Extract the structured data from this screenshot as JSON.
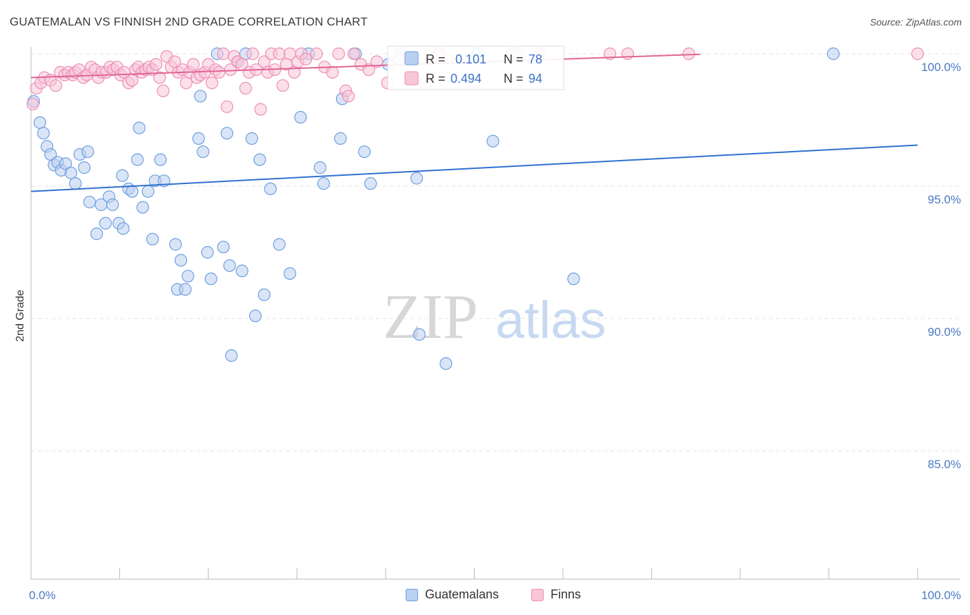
{
  "header": {
    "title": "GUATEMALAN VS FINNISH 2ND GRADE CORRELATION CHART",
    "source": "Source: ZipAtlas.com"
  },
  "watermark": {
    "zip": "ZIP",
    "atlas": "atlas"
  },
  "chart_data": {
    "type": "scatter",
    "title": "GUATEMALAN VS FINNISH 2ND GRADE CORRELATION CHART",
    "xlabel": "",
    "ylabel": "2nd Grade",
    "xlim": [
      0,
      100
    ],
    "ylim": [
      80.5,
      100.4
    ],
    "x_tick_labels": [
      {
        "value": 0,
        "label": "0.0%"
      },
      {
        "value": 100,
        "label": "100.0%"
      }
    ],
    "y_ticks": [
      {
        "value": 100,
        "label": "100.0%"
      },
      {
        "value": 95,
        "label": "95.0%"
      },
      {
        "value": 90,
        "label": "90.0%"
      },
      {
        "value": 85,
        "label": "85.0%"
      }
    ],
    "grid": true,
    "legend_position": "top-center",
    "stats": [
      {
        "r_label": "R =",
        "r": "0.101",
        "n_label": "N =",
        "n": "78"
      },
      {
        "r_label": "R =",
        "r": "0.494",
        "n_label": "N =",
        "n": "94"
      }
    ],
    "series": [
      {
        "name": "Guatemalans",
        "color": "#6f9ee0",
        "fill": "#b9d0f0",
        "trend": {
          "x": [
            0,
            100
          ],
          "y": [
            94.8,
            96.55
          ]
        },
        "points": [
          [
            0.3,
            98.2
          ],
          [
            1.0,
            97.4
          ],
          [
            1.4,
            97.0
          ],
          [
            1.8,
            96.5
          ],
          [
            2.2,
            96.2
          ],
          [
            2.6,
            95.8
          ],
          [
            3.0,
            95.9
          ],
          [
            3.4,
            95.6
          ],
          [
            3.9,
            95.85
          ],
          [
            4.5,
            95.5
          ],
          [
            5.0,
            95.1
          ],
          [
            5.5,
            96.2
          ],
          [
            6.0,
            95.7
          ],
          [
            6.4,
            96.3
          ],
          [
            6.6,
            94.4
          ],
          [
            7.4,
            93.2
          ],
          [
            7.9,
            94.3
          ],
          [
            8.4,
            93.6
          ],
          [
            8.8,
            94.6
          ],
          [
            9.2,
            94.3
          ],
          [
            9.9,
            93.6
          ],
          [
            10.4,
            93.4
          ],
          [
            10.3,
            95.4
          ],
          [
            11.0,
            94.9
          ],
          [
            11.4,
            94.8
          ],
          [
            12.0,
            96.0
          ],
          [
            12.2,
            97.2
          ],
          [
            12.6,
            94.2
          ],
          [
            13.2,
            94.8
          ],
          [
            13.7,
            93.0
          ],
          [
            14.0,
            95.2
          ],
          [
            14.6,
            96.0
          ],
          [
            15.0,
            95.2
          ],
          [
            16.3,
            92.8
          ],
          [
            16.5,
            91.1
          ],
          [
            16.9,
            92.2
          ],
          [
            17.4,
            91.1
          ],
          [
            17.7,
            91.6
          ],
          [
            18.9,
            96.8
          ],
          [
            19.1,
            98.4
          ],
          [
            19.4,
            96.3
          ],
          [
            19.9,
            92.5
          ],
          [
            20.3,
            91.5
          ],
          [
            21.0,
            100.0
          ],
          [
            21.7,
            92.7
          ],
          [
            22.1,
            97.0
          ],
          [
            22.4,
            92.0
          ],
          [
            22.6,
            88.6
          ],
          [
            23.3,
            99.7
          ],
          [
            23.8,
            91.8
          ],
          [
            24.2,
            100.0
          ],
          [
            24.9,
            96.8
          ],
          [
            25.3,
            90.1
          ],
          [
            25.8,
            96.0
          ],
          [
            26.3,
            90.9
          ],
          [
            27.0,
            94.9
          ],
          [
            28.0,
            92.8
          ],
          [
            29.2,
            91.7
          ],
          [
            30.4,
            97.6
          ],
          [
            31.3,
            100.0
          ],
          [
            32.6,
            95.7
          ],
          [
            33.0,
            95.1
          ],
          [
            34.9,
            96.8
          ],
          [
            35.1,
            98.3
          ],
          [
            36.6,
            100.0
          ],
          [
            37.6,
            96.3
          ],
          [
            38.3,
            95.1
          ],
          [
            40.3,
            99.6
          ],
          [
            41.7,
            100.0
          ],
          [
            43.5,
            95.3
          ],
          [
            43.8,
            89.4
          ],
          [
            46.0,
            100.0
          ],
          [
            46.8,
            88.3
          ],
          [
            50.4,
            100.0
          ],
          [
            52.1,
            96.7
          ],
          [
            54.8,
            100.0
          ],
          [
            61.2,
            91.5
          ],
          [
            90.5,
            100.0
          ]
        ]
      },
      {
        "name": "Finns",
        "color": "#ee8db2",
        "fill": "#f8c6d8",
        "trend": {
          "x": [
            0,
            75.5
          ],
          "y": [
            99.1,
            99.98
          ]
        },
        "points": [
          [
            0.2,
            98.1
          ],
          [
            0.6,
            98.7
          ],
          [
            1.1,
            98.9
          ],
          [
            1.5,
            99.1
          ],
          [
            2.2,
            99.0
          ],
          [
            2.8,
            98.8
          ],
          [
            3.3,
            99.3
          ],
          [
            3.8,
            99.2
          ],
          [
            4.2,
            99.3
          ],
          [
            4.7,
            99.2
          ],
          [
            5.0,
            99.3
          ],
          [
            5.4,
            99.4
          ],
          [
            5.9,
            99.1
          ],
          [
            6.3,
            99.2
          ],
          [
            6.8,
            99.5
          ],
          [
            7.2,
            99.4
          ],
          [
            7.6,
            99.1
          ],
          [
            8.0,
            99.3
          ],
          [
            8.5,
            99.3
          ],
          [
            8.9,
            99.5
          ],
          [
            9.3,
            99.4
          ],
          [
            9.7,
            99.5
          ],
          [
            10.1,
            99.2
          ],
          [
            10.5,
            99.3
          ],
          [
            11.0,
            98.9
          ],
          [
            11.4,
            99.0
          ],
          [
            11.8,
            99.4
          ],
          [
            12.1,
            99.5
          ],
          [
            12.5,
            99.3
          ],
          [
            12.9,
            99.4
          ],
          [
            13.3,
            99.5
          ],
          [
            13.7,
            99.4
          ],
          [
            14.1,
            99.6
          ],
          [
            14.5,
            99.1
          ],
          [
            14.9,
            98.6
          ],
          [
            15.3,
            99.9
          ],
          [
            15.8,
            99.5
          ],
          [
            16.2,
            99.7
          ],
          [
            16.6,
            99.3
          ],
          [
            17.1,
            99.4
          ],
          [
            17.5,
            98.9
          ],
          [
            17.9,
            99.3
          ],
          [
            18.3,
            99.6
          ],
          [
            18.7,
            99.1
          ],
          [
            19.1,
            99.2
          ],
          [
            19.6,
            99.3
          ],
          [
            20.0,
            99.6
          ],
          [
            20.4,
            98.9
          ],
          [
            20.8,
            99.4
          ],
          [
            21.2,
            99.3
          ],
          [
            21.7,
            100.0
          ],
          [
            22.1,
            98.0
          ],
          [
            22.5,
            99.4
          ],
          [
            22.9,
            99.9
          ],
          [
            23.3,
            99.7
          ],
          [
            23.8,
            99.6
          ],
          [
            24.2,
            98.7
          ],
          [
            24.6,
            99.3
          ],
          [
            25.0,
            100.0
          ],
          [
            25.4,
            99.4
          ],
          [
            25.9,
            97.9
          ],
          [
            26.3,
            99.7
          ],
          [
            26.7,
            99.3
          ],
          [
            27.1,
            100.0
          ],
          [
            27.5,
            99.4
          ],
          [
            28.0,
            100.0
          ],
          [
            28.4,
            98.8
          ],
          [
            28.8,
            99.6
          ],
          [
            29.2,
            100.0
          ],
          [
            29.7,
            99.3
          ],
          [
            30.1,
            99.7
          ],
          [
            30.5,
            100.0
          ],
          [
            31.0,
            99.8
          ],
          [
            32.2,
            100.0
          ],
          [
            33.1,
            99.5
          ],
          [
            34.0,
            99.3
          ],
          [
            34.7,
            100.0
          ],
          [
            35.5,
            98.6
          ],
          [
            35.8,
            98.4
          ],
          [
            36.4,
            100.0
          ],
          [
            37.2,
            99.6
          ],
          [
            38.1,
            99.4
          ],
          [
            39.0,
            99.7
          ],
          [
            40.2,
            98.9
          ],
          [
            41.5,
            99.8
          ],
          [
            43.0,
            99.9
          ],
          [
            44.4,
            98.9
          ],
          [
            46.1,
            100.0
          ],
          [
            54.3,
            100.0
          ],
          [
            57.4,
            100.0
          ],
          [
            65.3,
            100.0
          ],
          [
            67.3,
            100.0
          ],
          [
            74.2,
            100.0
          ],
          [
            100.0,
            100.0
          ]
        ]
      }
    ]
  }
}
